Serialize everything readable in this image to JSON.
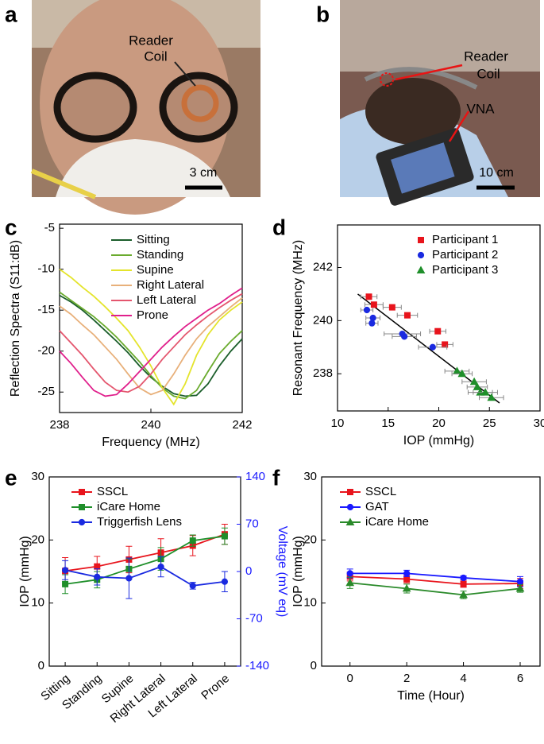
{
  "panel_labels": [
    "a",
    "b",
    "c",
    "d",
    "e",
    "f"
  ],
  "photos": [
    {
      "callouts": [
        [
          "Reader",
          "Coil"
        ]
      ],
      "scale_bar": "3 cm"
    },
    {
      "callouts": [
        [
          "Reader",
          "Coil"
        ],
        [
          "VNA"
        ]
      ],
      "scale_bar": "10 cm"
    }
  ],
  "chart_data": [
    {
      "type": "line",
      "xlabel": "Frequency (MHz)",
      "ylabel": "Reflection Spectra (S11:dB)",
      "xlim": [
        238,
        242
      ],
      "xticks": [
        238,
        240,
        242
      ],
      "ylim": [
        -27.5,
        -4.5
      ],
      "yticks": [
        -25,
        -20,
        -15,
        -10,
        -5
      ],
      "x": [
        238,
        238.25,
        238.5,
        238.75,
        239,
        239.25,
        239.5,
        239.75,
        240,
        240.25,
        240.5,
        240.75,
        241,
        241.25,
        241.5,
        241.75,
        242
      ],
      "series": [
        {
          "name": "Sitting",
          "color": "#1b5e2b",
          "values": [
            -13.2,
            -14,
            -15,
            -16.2,
            -17.5,
            -18.8,
            -20.2,
            -21.8,
            -23.2,
            -24.3,
            -25.2,
            -25.5,
            -25.4,
            -24,
            -21.8,
            -20,
            -18.5
          ]
        },
        {
          "name": "Standing",
          "color": "#6aab2e",
          "values": [
            -12.8,
            -13.8,
            -14.8,
            -15.8,
            -17,
            -18.3,
            -19.8,
            -21.3,
            -23,
            -24.5,
            -25.5,
            -25.8,
            -24.8,
            -22.5,
            -20.3,
            -18.8,
            -17.5
          ]
        },
        {
          "name": "Supine",
          "color": "#e4e42c",
          "values": [
            -10,
            -11,
            -12.2,
            -13.3,
            -14.6,
            -16,
            -17.5,
            -19.5,
            -21.8,
            -24.5,
            -26.5,
            -24,
            -20.5,
            -18,
            -16.2,
            -15,
            -14
          ]
        },
        {
          "name": "Right Lateral",
          "color": "#e8b07a",
          "values": [
            -14.5,
            -15.5,
            -16.8,
            -18,
            -19.5,
            -21,
            -22.8,
            -24.5,
            -25.3,
            -24.8,
            -22.8,
            -20.5,
            -18.5,
            -17,
            -15.8,
            -14.6,
            -13.5
          ]
        },
        {
          "name": "Left Lateral",
          "color": "#e4566e",
          "values": [
            -17.5,
            -19,
            -20.5,
            -22.2,
            -23.8,
            -24.8,
            -25,
            -24.3,
            -22.8,
            -21,
            -19.5,
            -18,
            -16.8,
            -15.7,
            -14.7,
            -13.8,
            -13
          ]
        },
        {
          "name": "Prone",
          "color": "#e0208c",
          "values": [
            -20,
            -21.5,
            -23.2,
            -24.8,
            -25.5,
            -25.3,
            -24,
            -22.5,
            -21,
            -19.5,
            -18.2,
            -17,
            -16,
            -15,
            -14.2,
            -13.2,
            -12.3
          ]
        }
      ]
    },
    {
      "type": "scatter",
      "xlabel": "IOP (mmHg)",
      "ylabel": "Resonant Frequency (MHz)",
      "xlim": [
        10,
        30
      ],
      "xticks": [
        10,
        15,
        20,
        25,
        30
      ],
      "ylim": [
        236.6,
        243.6
      ],
      "yticks": [
        238,
        240,
        242
      ],
      "series": [
        {
          "name": "Participant 1",
          "color": "#e8141c",
          "marker": "square",
          "x": [
            13.1,
            13.6,
            15.4,
            16.9,
            19.9,
            20.6
          ],
          "xerr": [
            0.8,
            0.9,
            0.9,
            1,
            0.8,
            0.8
          ],
          "values": [
            240.9,
            240.6,
            240.5,
            240.2,
            239.6,
            239.1
          ]
        },
        {
          "name": "Participant 2",
          "color": "#1a2ae0",
          "marker": "circle",
          "x": [
            12.9,
            13.5,
            13.4,
            16.4,
            16.6,
            19.4
          ],
          "xerr": [
            0.6,
            0.7,
            0.6,
            1.8,
            1.2,
            1.4
          ],
          "values": [
            240.4,
            240.1,
            239.9,
            239.5,
            239.4,
            239.0
          ]
        },
        {
          "name": "Participant 3",
          "color": "#1f8f2a",
          "marker": "triangle",
          "x": [
            21.8,
            22.3,
            23.5,
            23.8,
            24.1,
            24.6,
            25.2
          ],
          "xerr": [
            1.2,
            1,
            1.2,
            1,
            1.2,
            1.2,
            1.2
          ],
          "values": [
            238.1,
            238.0,
            237.7,
            237.5,
            237.3,
            237.3,
            237.1
          ]
        }
      ],
      "fit_line": {
        "x": [
          12,
          26
        ],
        "y": [
          241,
          236.9
        ],
        "color": "#000000"
      }
    },
    {
      "type": "line",
      "ylabel": "IOP (mmHg)",
      "y2label": "Voltage (mV eq)",
      "y2color": "#1a1aff",
      "categories": [
        "Sitting",
        "Standing",
        "Supine",
        "Right Lateral",
        "Left Lateral",
        "Prone"
      ],
      "ylim": [
        0,
        30
      ],
      "yticks": [
        0,
        10,
        20,
        30
      ],
      "y2lim": [
        -140,
        140
      ],
      "y2ticks": [
        -140,
        -70,
        0,
        70,
        140
      ],
      "series": [
        {
          "name": "SSCL",
          "color": "#e8141c",
          "marker": "square",
          "values": [
            15.1,
            15.8,
            16.9,
            18,
            19.1,
            20.9
          ],
          "errors": [
            2.1,
            1.6,
            2.1,
            2.2,
            1.6,
            1.6
          ]
        },
        {
          "name": "iCare Home",
          "color": "#1f8f2a",
          "marker": "square",
          "values": [
            13,
            13.7,
            15.4,
            17,
            19.9,
            20.6
          ],
          "errors": [
            1.5,
            1.3,
            1.6,
            1.8,
            0.9,
            1.3
          ]
        },
        {
          "name": "Triggerfish Lens",
          "color": "#1a2ae0",
          "marker": "circle",
          "axis": "y2",
          "values": [
            2,
            -8,
            -10,
            7,
            -21,
            -15
          ],
          "errors": [
            14,
            12,
            30,
            15,
            5,
            15
          ]
        }
      ]
    },
    {
      "type": "line",
      "xlabel": "Time (Hour)",
      "ylabel": "IOP (mmHg)",
      "xlim": [
        -1,
        6.7
      ],
      "xticks": [
        0,
        2,
        4,
        6
      ],
      "ylim": [
        0,
        30
      ],
      "yticks": [
        0,
        10,
        20,
        30
      ],
      "x": [
        0,
        2,
        4,
        6
      ],
      "series": [
        {
          "name": "SSCL",
          "color": "#e8141c",
          "marker": "square",
          "values": [
            14.2,
            13.8,
            13,
            13.1
          ],
          "errors": [
            0.7,
            0.6,
            0.5,
            0.8
          ]
        },
        {
          "name": "GAT",
          "color": "#1a1aff",
          "marker": "circle",
          "values": [
            14.7,
            14.7,
            14,
            13.4
          ],
          "errors": [
            0.7,
            0.5,
            0.3,
            0.8
          ]
        },
        {
          "name": "iCare Home",
          "color": "#2a8a2a",
          "marker": "triangle",
          "values": [
            13.2,
            12.3,
            11.3,
            12.3
          ],
          "errors": [
            0.9,
            0.7,
            0.6,
            0.6
          ]
        }
      ]
    }
  ]
}
